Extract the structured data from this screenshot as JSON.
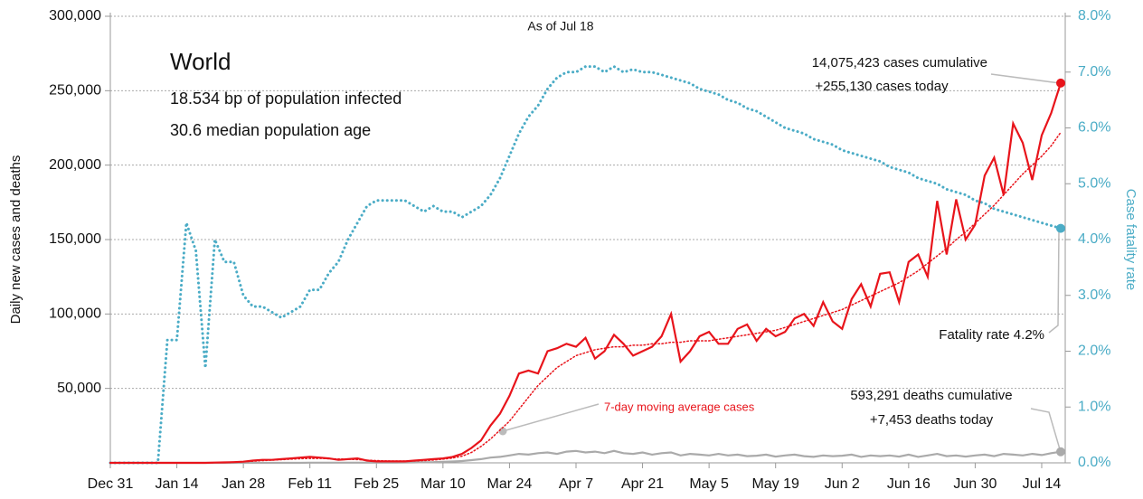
{
  "chart_data": {
    "type": "line",
    "title": "World",
    "subtitle": "As of Jul 18",
    "annotations": [
      "18.534 bp of population infected",
      "30.6 median population age",
      "14,075,423 cases cumulative",
      "+255,130 cases today",
      "Fatality rate 4.2%",
      "593,291 deaths cumulative",
      "+7,453 deaths today",
      "7-day moving average cases"
    ],
    "y_label": "Daily new cases and deaths",
    "y2_label": "Case fatality rate",
    "categories": [
      "Dec 31",
      null,
      null,
      null,
      null,
      null,
      null,
      "Jan 14",
      null,
      null,
      null,
      null,
      null,
      null,
      "Jan 28",
      null,
      null,
      null,
      null,
      null,
      null,
      "Feb 11",
      null,
      null,
      null,
      null,
      null,
      null,
      "Feb 25",
      null,
      null,
      null,
      null,
      null,
      null,
      "Mar 10",
      null,
      null,
      null,
      null,
      null,
      null,
      "Mar 24",
      null,
      null,
      null,
      null,
      null,
      null,
      "Apr 7",
      null,
      null,
      null,
      null,
      null,
      null,
      "Apr 21",
      null,
      null,
      null,
      null,
      null,
      null,
      "May 5",
      null,
      null,
      null,
      null,
      null,
      null,
      "May 19",
      null,
      null,
      null,
      null,
      null,
      null,
      "Jun 2",
      null,
      null,
      null,
      null,
      null,
      null,
      "Jun 16",
      null,
      null,
      null,
      null,
      null,
      null,
      "Jun 30",
      null,
      null,
      null,
      null,
      null,
      null,
      "Jul 14",
      null,
      null
    ],
    "series": [
      {
        "name": "Daily new cases",
        "color": "#e8141b",
        "style": "solid",
        "values": [
          0,
          0,
          0,
          0,
          0,
          0,
          0,
          0,
          0,
          0,
          0,
          200,
          300,
          500,
          800,
          1500,
          2000,
          2000,
          2500,
          3000,
          3500,
          4000,
          3500,
          3000,
          2000,
          2500,
          3000,
          1500,
          1000,
          1000,
          1000,
          1000,
          1500,
          2000,
          2500,
          3000,
          4000,
          6000,
          10000,
          15000,
          25000,
          33000,
          45000,
          60000,
          62000,
          60000,
          75000,
          77000,
          80000,
          78000,
          84000,
          70000,
          75000,
          86000,
          80000,
          72000,
          75000,
          78000,
          85000,
          100000,
          68000,
          75000,
          85000,
          88000,
          80000,
          80000,
          90000,
          93000,
          82000,
          90000,
          85000,
          88000,
          97000,
          100000,
          92000,
          108000,
          95000,
          90000,
          110000,
          120000,
          105000,
          127000,
          128000,
          108000,
          135000,
          140000,
          125000,
          176000,
          140000,
          177000,
          150000,
          160000,
          193000,
          205000,
          180000,
          228000,
          215000,
          190000,
          220000,
          235000,
          255130
        ]
      },
      {
        "name": "7-day moving average cases",
        "color": "#e8141b",
        "style": "dotted",
        "values": [
          0,
          0,
          0,
          0,
          0,
          0,
          0,
          0,
          0,
          0,
          0,
          100,
          200,
          400,
          700,
          1100,
          1500,
          1800,
          2100,
          2500,
          2800,
          3000,
          3000,
          2800,
          2600,
          2400,
          2200,
          1800,
          1500,
          1300,
          1200,
          1200,
          1300,
          1500,
          1900,
          2500,
          3200,
          4500,
          7000,
          11000,
          16000,
          22000,
          28000,
          36000,
          44000,
          52000,
          58000,
          64000,
          68000,
          72000,
          74000,
          76000,
          77000,
          78000,
          78000,
          79000,
          79000,
          80000,
          80000,
          81000,
          81000,
          82000,
          82000,
          82000,
          83000,
          84000,
          85000,
          86000,
          87000,
          88000,
          89000,
          91000,
          93000,
          95000,
          97000,
          99000,
          101000,
          103000,
          106000,
          109000,
          112000,
          115000,
          118000,
          121000,
          125000,
          129000,
          134000,
          139000,
          144000,
          150000,
          155000,
          161000,
          167000,
          173000,
          180000,
          187000,
          194000,
          200000,
          206000,
          213000,
          222000
        ]
      },
      {
        "name": "Daily new deaths",
        "color": "#aaaaaa",
        "style": "solid",
        "values": [
          0,
          0,
          0,
          0,
          0,
          0,
          0,
          0,
          0,
          0,
          0,
          0,
          0,
          0,
          0,
          0,
          0,
          0,
          0,
          0,
          0,
          100,
          100,
          100,
          100,
          100,
          100,
          100,
          100,
          100,
          100,
          200,
          300,
          400,
          500,
          700,
          900,
          1200,
          1800,
          2500,
          3500,
          4000,
          5000,
          6000,
          5500,
          6500,
          7000,
          6000,
          7500,
          8000,
          7000,
          7500,
          6500,
          8000,
          6500,
          6000,
          7000,
          5500,
          6500,
          7000,
          5000,
          6000,
          5500,
          5000,
          6000,
          5000,
          5500,
          4500,
          4800,
          5500,
          4200,
          5000,
          5500,
          4500,
          4000,
          5000,
          4500,
          4800,
          5500,
          4000,
          5000,
          4500,
          5000,
          4200,
          5500,
          4000,
          5000,
          6000,
          4500,
          5000,
          4200,
          5000,
          5500,
          4500,
          6000,
          5500,
          5000,
          6000,
          5200,
          6500,
          7453
        ]
      },
      {
        "name": "Case fatality rate",
        "color": "#4bacc6",
        "style": "dotted",
        "axis": "y2",
        "values": [
          0,
          0,
          0,
          0,
          0,
          0,
          2.2,
          2.2,
          4.3,
          3.8,
          1.7,
          4.0,
          3.6,
          3.6,
          3.0,
          2.8,
          2.8,
          2.7,
          2.6,
          2.7,
          2.8,
          3.1,
          3.1,
          3.4,
          3.6,
          4.0,
          4.3,
          4.6,
          4.7,
          4.7,
          4.7,
          4.7,
          4.6,
          4.5,
          4.6,
          4.5,
          4.5,
          4.4,
          4.5,
          4.6,
          4.8,
          5.1,
          5.5,
          5.9,
          6.2,
          6.4,
          6.7,
          6.9,
          7.0,
          7.0,
          7.1,
          7.1,
          7.0,
          7.1,
          7.0,
          7.05,
          7.0,
          7.0,
          6.95,
          6.9,
          6.85,
          6.8,
          6.7,
          6.65,
          6.6,
          6.5,
          6.45,
          6.35,
          6.3,
          6.2,
          6.1,
          6.0,
          5.95,
          5.9,
          5.8,
          5.75,
          5.7,
          5.6,
          5.55,
          5.5,
          5.45,
          5.4,
          5.3,
          5.25,
          5.2,
          5.1,
          5.05,
          5.0,
          4.9,
          4.85,
          4.8,
          4.7,
          4.65,
          4.55,
          4.5,
          4.45,
          4.4,
          4.35,
          4.3,
          4.25,
          4.2
        ]
      }
    ],
    "ylim": [
      0,
      300000
    ],
    "yticks": [
      {
        "value": 50000,
        "label": "50,000"
      },
      {
        "value": 100000,
        "label": "100,000"
      },
      {
        "value": 150000,
        "label": "150,000"
      },
      {
        "value": 200000,
        "label": "200,000"
      },
      {
        "value": 250000,
        "label": "250,000"
      },
      {
        "value": 300000,
        "label": "300,000"
      }
    ],
    "y2lim": [
      0,
      8
    ],
    "y2ticks": [
      {
        "value": 0,
        "label": "0.0%"
      },
      {
        "value": 1,
        "label": "1.0%"
      },
      {
        "value": 2,
        "label": "2.0%"
      },
      {
        "value": 3,
        "label": "3.0%"
      },
      {
        "value": 4,
        "label": "4.0%"
      },
      {
        "value": 5,
        "label": "5.0%"
      },
      {
        "value": 6,
        "label": "6.0%"
      },
      {
        "value": 7,
        "label": "7.0%"
      },
      {
        "value": 8,
        "label": "8.0%"
      }
    ],
    "grid": true,
    "y2_color": "#4bacc6"
  }
}
